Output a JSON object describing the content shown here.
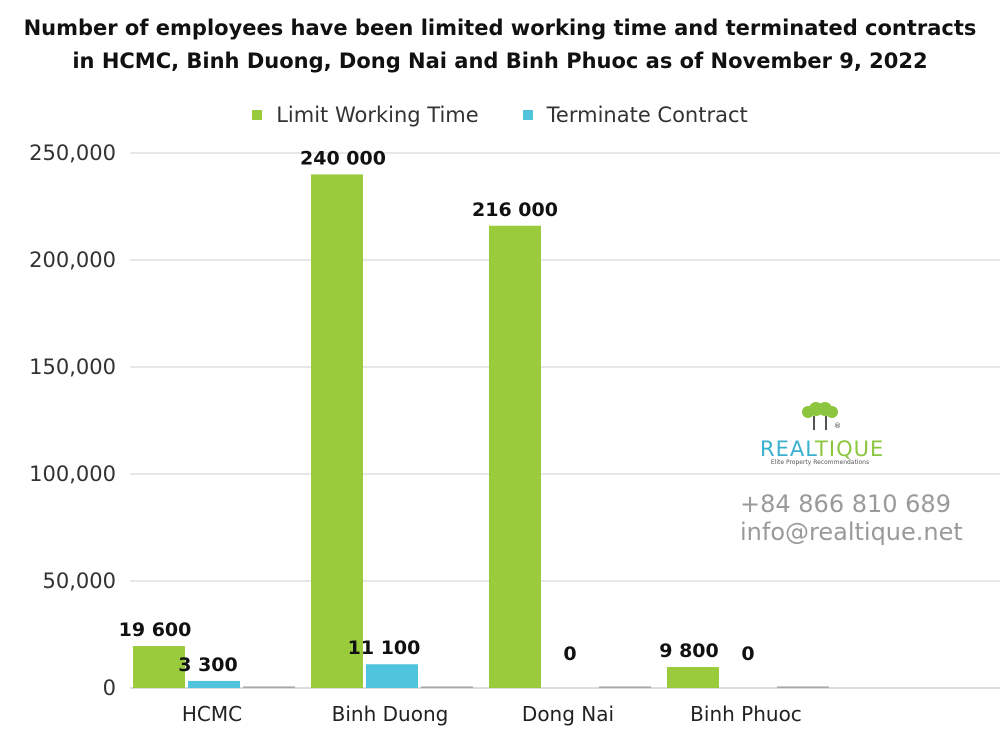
{
  "title_line1": "Number of employees have been limited working time and terminated contracts",
  "title_line2": "in HCMC, Binh Duong, Dong Nai and Binh Phuoc as of November 9, 2022",
  "colors": {
    "limit": "#9acb3c",
    "terminate": "#4fc4dc",
    "grid": "#cfcfcf"
  },
  "chart_data": {
    "type": "bar",
    "title": "Number of employees have been limited working time and terminated contracts in HCMC, Binh Duong, Dong Nai and Binh Phuoc as of November 9, 2022",
    "categories": [
      "HCMC",
      "Binh Duong",
      "Dong Nai",
      "Binh Phuoc"
    ],
    "series": [
      {
        "name": "Limit Working Time",
        "values": [
          19600,
          240000,
          216000,
          9800
        ],
        "labels": [
          "19 600",
          "240 000",
          "216 000",
          "9 800"
        ]
      },
      {
        "name": "Terminate Contract",
        "values": [
          3300,
          11100,
          0,
          0
        ],
        "labels": [
          "3 300",
          "11 100",
          "0",
          "0"
        ]
      }
    ],
    "ylim": [
      0,
      250000
    ],
    "yticks": [
      0,
      50000,
      100000,
      150000,
      200000,
      250000
    ],
    "ytick_labels": [
      "0",
      "50,000",
      "100,000",
      "150,000",
      "200,000",
      "250,000"
    ],
    "grid": true,
    "legend_position": "top-center",
    "xlabel": "",
    "ylabel": ""
  },
  "watermark": {
    "brand_prefix": "REAL",
    "brand_suffix": "TIQUE",
    "tagline": "Elite Property Recommendations",
    "phone": "+84 866 810 689",
    "email": "info@realtique.net"
  }
}
